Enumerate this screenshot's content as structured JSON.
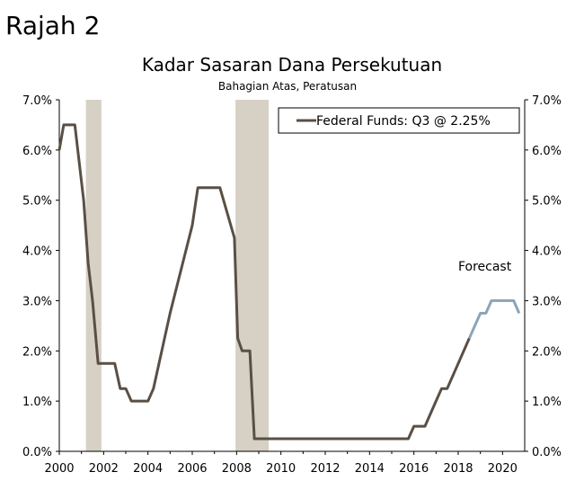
{
  "figure_label": "Rajah 2",
  "chart_data": {
    "type": "line",
    "title": "Kadar Sasaran Dana Persekutuan",
    "subtitle": "Bahagian Atas, Peratusan",
    "xlabel": "",
    "ylabel": "",
    "xlim": [
      2000,
      2021
    ],
    "ylim": [
      0,
      7
    ],
    "x_ticks": [
      "2000",
      "2002",
      "2004",
      "2006",
      "2008",
      "2010",
      "2012",
      "2014",
      "2016",
      "2018",
      "2020"
    ],
    "y_ticks_left": [
      "0.0%",
      "1.0%",
      "2.0%",
      "3.0%",
      "4.0%",
      "5.0%",
      "6.0%",
      "7.0%"
    ],
    "y_ticks_right": [
      "0.0%",
      "1.0%",
      "2.0%",
      "3.0%",
      "4.0%",
      "5.0%",
      "6.0%",
      "7.0%"
    ],
    "legend": {
      "label": "Federal Funds: Q3 @ 2.25%",
      "placement": "top-right"
    },
    "colors": {
      "actual": "#5a4f45",
      "forecast": "#8ba4b8",
      "recession": "#d6d1c4"
    },
    "annotations": [
      {
        "text": "Forecast",
        "x": 2019.2,
        "y": 3.6
      }
    ],
    "recessions": [
      [
        2001.2,
        2001.9
      ],
      [
        2007.95,
        2009.45
      ]
    ],
    "series": [
      {
        "name": "Federal Funds: Q3 @ 2.25%",
        "points": [
          [
            2000.0,
            6.0
          ],
          [
            2000.2,
            6.5
          ],
          [
            2000.7,
            6.5
          ],
          [
            2001.1,
            5.0
          ],
          [
            2001.3,
            3.75
          ],
          [
            2001.5,
            3.0
          ],
          [
            2001.75,
            1.75
          ],
          [
            2002.5,
            1.75
          ],
          [
            2002.75,
            1.25
          ],
          [
            2003.0,
            1.25
          ],
          [
            2003.25,
            1.0
          ],
          [
            2004.0,
            1.0
          ],
          [
            2004.25,
            1.25
          ],
          [
            2005.0,
            2.75
          ],
          [
            2006.0,
            4.5
          ],
          [
            2006.25,
            5.25
          ],
          [
            2007.25,
            5.25
          ],
          [
            2007.9,
            4.25
          ],
          [
            2008.05,
            2.25
          ],
          [
            2008.25,
            2.0
          ],
          [
            2008.6,
            2.0
          ],
          [
            2008.8,
            0.25
          ],
          [
            2015.75,
            0.25
          ],
          [
            2016.0,
            0.5
          ],
          [
            2016.5,
            0.5
          ],
          [
            2017.0,
            1.0
          ],
          [
            2017.25,
            1.25
          ],
          [
            2017.5,
            1.25
          ],
          [
            2018.0,
            1.75
          ],
          [
            2018.5,
            2.25
          ]
        ]
      },
      {
        "name": "Forecast",
        "points": [
          [
            2018.5,
            2.25
          ],
          [
            2019.0,
            2.75
          ],
          [
            2019.25,
            2.75
          ],
          [
            2019.5,
            3.0
          ],
          [
            2020.5,
            3.0
          ],
          [
            2020.75,
            2.75
          ]
        ]
      }
    ]
  }
}
